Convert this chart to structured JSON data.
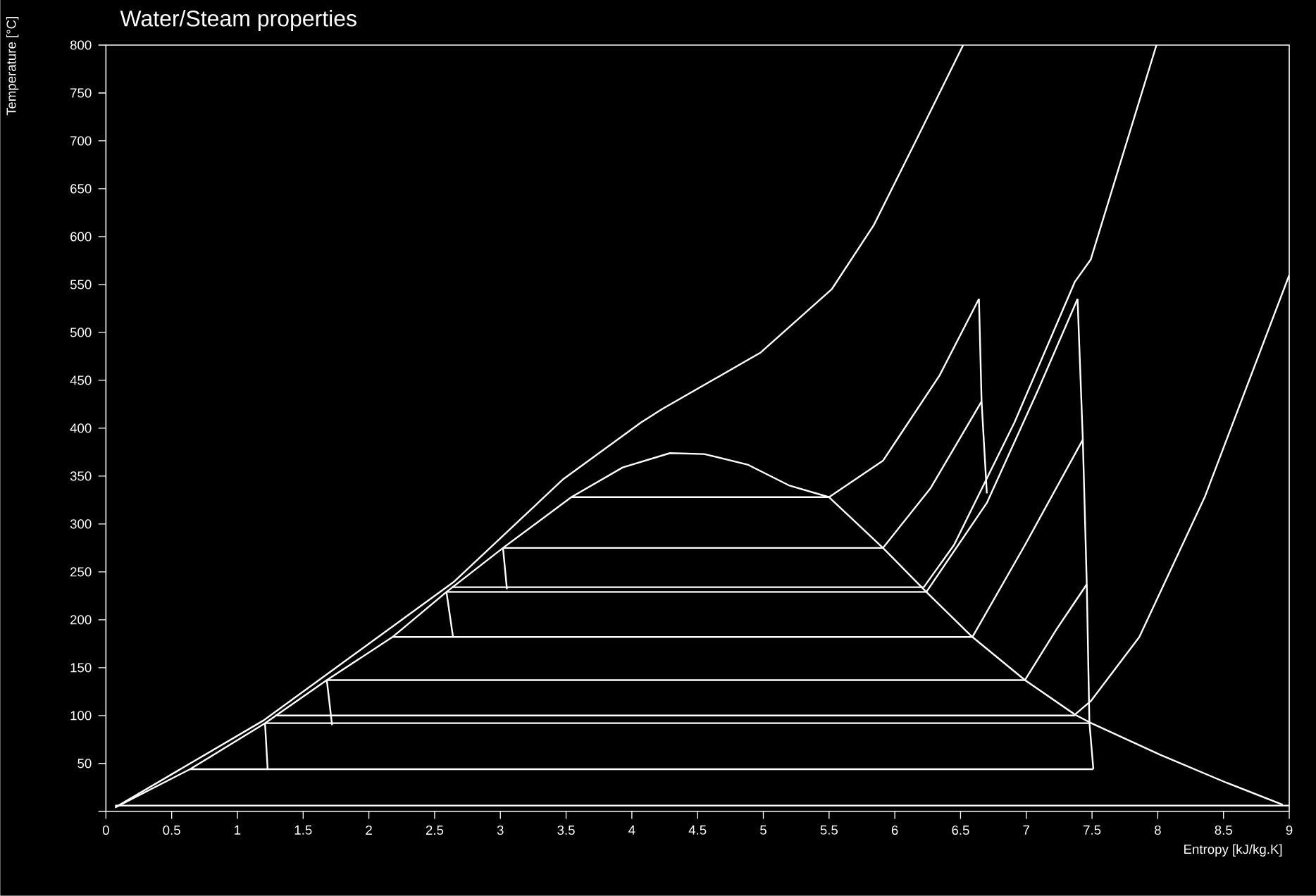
{
  "chart_data": {
    "type": "line",
    "title": "Water/Steam properties",
    "xlabel": "Entropy [kJ/kg.K]",
    "ylabel": "Temperature [°C]",
    "xlim": [
      0,
      9
    ],
    "ylim": [
      0,
      800
    ],
    "xticks": [
      0,
      0.5,
      1,
      1.5,
      2,
      2.5,
      3,
      3.5,
      4,
      4.5,
      5,
      5.5,
      6,
      6.5,
      7,
      7.5,
      8,
      8.5,
      9
    ],
    "yticks": [
      {
        "value": 0,
        "label": null
      },
      50,
      100,
      150,
      200,
      250,
      300,
      350,
      400,
      450,
      500,
      550,
      600,
      650,
      700,
      750,
      800
    ],
    "marker": "none",
    "line_style": "solid",
    "series": [
      {
        "color": "#ffffff",
        "x": [
          0.07,
          0.64,
          1.21,
          1.68,
          2.18,
          2.59,
          3.02,
          3.54,
          3.93,
          4.29,
          4.55,
          4.88,
          5.2,
          5.5,
          5.91,
          6.24,
          6.59,
          6.99,
          7.37,
          7.48,
          8.02,
          8.52,
          8.95
        ],
        "values": [
          4,
          44,
          92,
          137,
          182,
          229,
          275,
          328,
          359,
          374,
          373,
          362,
          340,
          328,
          275,
          229,
          182,
          137,
          101,
          93,
          59,
          30,
          7
        ]
      },
      {
        "color": "#ffffff",
        "x": [
          0.07,
          1.2,
          2.65,
          3.48,
          4.07,
          4.23,
          4.98,
          5.52,
          5.84,
          6.16,
          6.52
        ],
        "values": [
          4,
          95,
          240,
          347,
          406,
          420,
          479,
          545,
          612,
          700,
          800
        ]
      },
      {
        "color": "#ffffff",
        "x": [
          6.22,
          6.45,
          6.91,
          7.37,
          7.49,
          7.78,
          7.99
        ],
        "values": [
          234,
          278,
          406,
          553,
          576,
          706,
          800
        ]
      },
      {
        "color": "#ffffff",
        "x": [
          7.37,
          7.49,
          7.86,
          8.36,
          9.0
        ],
        "values": [
          101,
          115,
          182,
          329,
          560
        ]
      },
      {
        "color": "#ffffff",
        "x": [
          0.07,
          9.0
        ],
        "values": [
          6,
          6
        ]
      },
      {
        "color": "#ffffff",
        "x": [
          1.29,
          7.37
        ],
        "values": [
          100,
          100
        ]
      },
      {
        "color": "#ffffff",
        "x": [
          2.63,
          6.22
        ],
        "values": [
          234,
          234
        ]
      },
      {
        "color": "#ffffff",
        "x": [
          3.54,
          5.5
        ],
        "values": [
          328,
          328
        ]
      },
      {
        "color": "#ffffff",
        "x": [
          3.02,
          5.91
        ],
        "values": [
          275,
          275
        ]
      },
      {
        "color": "#ffffff",
        "x": [
          2.59,
          6.24
        ],
        "values": [
          229,
          229
        ]
      },
      {
        "color": "#ffffff",
        "x": [
          2.18,
          6.59
        ],
        "values": [
          182,
          182
        ]
      },
      {
        "color": "#ffffff",
        "x": [
          1.68,
          6.99
        ],
        "values": [
          137,
          137
        ]
      },
      {
        "color": "#ffffff",
        "x": [
          1.21,
          7.48
        ],
        "values": [
          92,
          92
        ]
      },
      {
        "color": "#ffffff",
        "x": [
          0.64,
          7.51
        ],
        "values": [
          44,
          44
        ]
      },
      {
        "color": "#ffffff",
        "x": [
          3.02,
          3.05
        ],
        "values": [
          275,
          232
        ]
      },
      {
        "color": "#ffffff",
        "x": [
          2.59,
          2.64
        ],
        "values": [
          229,
          182
        ]
      },
      {
        "color": "#ffffff",
        "x": [
          1.68,
          1.72
        ],
        "values": [
          137,
          90
        ]
      },
      {
        "color": "#ffffff",
        "x": [
          1.21,
          1.23
        ],
        "values": [
          92,
          44
        ]
      },
      {
        "color": "#ffffff",
        "x": [
          5.5,
          5.91,
          6.34,
          6.64
        ],
        "values": [
          328,
          366,
          455,
          535
        ]
      },
      {
        "color": "#ffffff",
        "x": [
          6.64,
          6.66,
          6.7
        ],
        "values": [
          535,
          428,
          332
        ]
      },
      {
        "color": "#ffffff",
        "x": [
          5.91,
          6.27,
          6.66
        ],
        "values": [
          275,
          337,
          428
        ]
      },
      {
        "color": "#ffffff",
        "x": [
          6.24,
          6.7,
          7.09,
          7.39
        ],
        "values": [
          229,
          322,
          440,
          535
        ]
      },
      {
        "color": "#ffffff",
        "x": [
          7.39,
          7.43,
          7.46,
          7.48,
          7.51
        ],
        "values": [
          535,
          388,
          237,
          93,
          44
        ]
      },
      {
        "color": "#ffffff",
        "x": [
          6.59,
          6.99,
          7.43
        ],
        "values": [
          182,
          278,
          388
        ]
      },
      {
        "color": "#ffffff",
        "x": [
          6.99,
          7.23,
          7.46
        ],
        "values": [
          137,
          190,
          237
        ]
      }
    ]
  }
}
